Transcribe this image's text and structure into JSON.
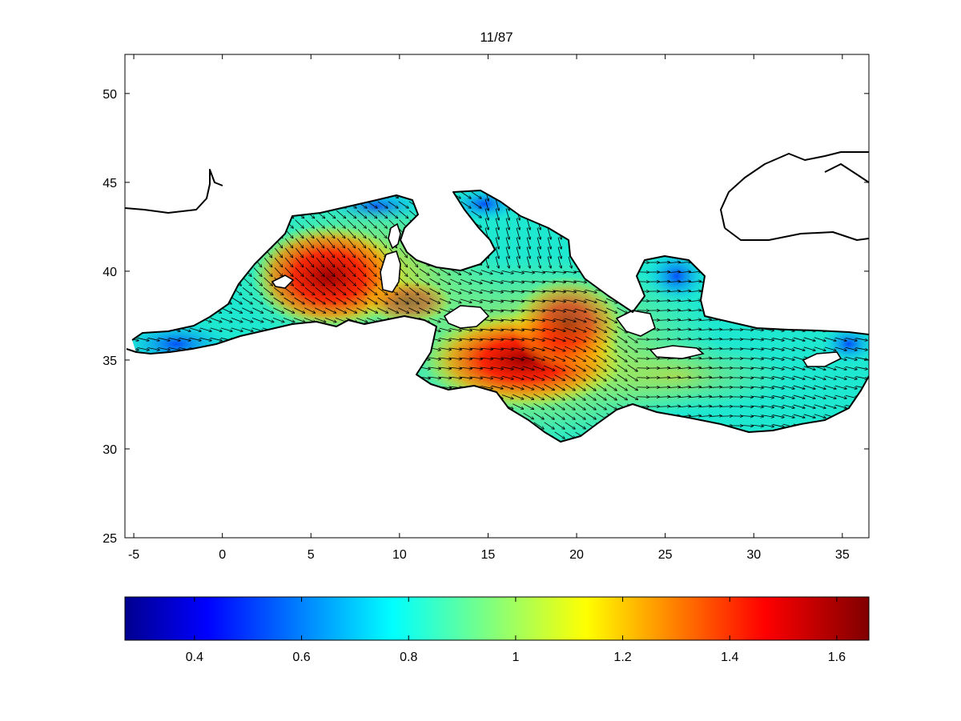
{
  "title": "11/87",
  "map": {
    "x_ticks": [
      -5,
      0,
      5,
      10,
      15,
      20,
      25,
      30,
      35
    ],
    "y_ticks": [
      25,
      30,
      35,
      40,
      45,
      50
    ],
    "xlim": [
      -5.5,
      36.5
    ],
    "ylim": [
      25,
      52.2
    ],
    "field_hotspots": [
      {
        "lon": 6.0,
        "lat": 39.7,
        "value": 1.6
      },
      {
        "lon": 17.0,
        "lat": 35.0,
        "value": 1.6
      },
      {
        "lon": 19.5,
        "lat": 37.0,
        "value": 1.35
      },
      {
        "lon": 10.5,
        "lat": 38.3,
        "value": 1.25
      }
    ]
  },
  "colorbar": {
    "ticks": [
      "0.4",
      "0.6",
      "0.8",
      "1",
      "1.2",
      "1.4",
      "1.6"
    ],
    "tick_values": [
      0.4,
      0.6,
      0.8,
      1.0,
      1.2,
      1.4,
      1.6
    ],
    "range": [
      0.27,
      1.66
    ],
    "colormap": "jet",
    "colors": [
      "#00008f",
      "#0000ff",
      "#00ffff",
      "#ffff00",
      "#ff0000",
      "#800000"
    ]
  }
}
